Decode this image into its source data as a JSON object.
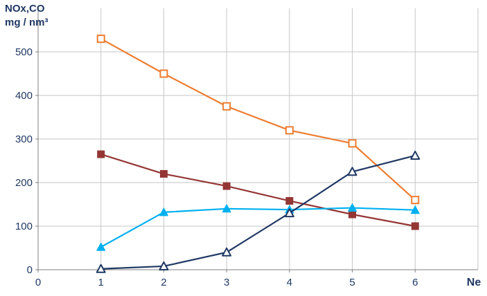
{
  "title": {
    "line1": "NOx,CO",
    "line2": "mg / nm³"
  },
  "colors": {
    "text": "#1F3864",
    "grid": "#C6C6C6",
    "axis": "#7F7F7F",
    "background": "#FFFFFF"
  },
  "chart_data": {
    "type": "line",
    "title": "NOx,CO mg / nm³",
    "xlabel": "Ne",
    "ylabel": "NOx,CO mg / nm³",
    "x": [
      1,
      2,
      3,
      4,
      5,
      6
    ],
    "xticks": [
      0,
      1,
      2,
      3,
      4,
      5,
      6
    ],
    "yticks": [
      0,
      100,
      200,
      300,
      400,
      500
    ],
    "xlim": [
      0,
      7
    ],
    "ylim": [
      0,
      600
    ],
    "grid": true,
    "legend": false,
    "series": [
      {
        "key": "orange-open-square",
        "name": "orange open-square series",
        "color": "#ED7D31",
        "marker": "square-open",
        "values": [
          530,
          450,
          375,
          320,
          290,
          160
        ]
      },
      {
        "key": "dark-red-filled-square",
        "name": "dark red filled-square series",
        "color": "#943634",
        "marker": "square",
        "values": [
          265,
          220,
          192,
          158,
          127,
          100
        ]
      },
      {
        "key": "cyan-filled-triangle",
        "name": "cyan filled-triangle series",
        "color": "#00B0F0",
        "marker": "triangle",
        "values": [
          52,
          132,
          140,
          138,
          142,
          137
        ]
      },
      {
        "key": "navy-open-triangle",
        "name": "navy open-triangle series",
        "color": "#1F3864",
        "marker": "triangle-open",
        "values": [
          2,
          8,
          40,
          130,
          225,
          262
        ]
      }
    ]
  }
}
